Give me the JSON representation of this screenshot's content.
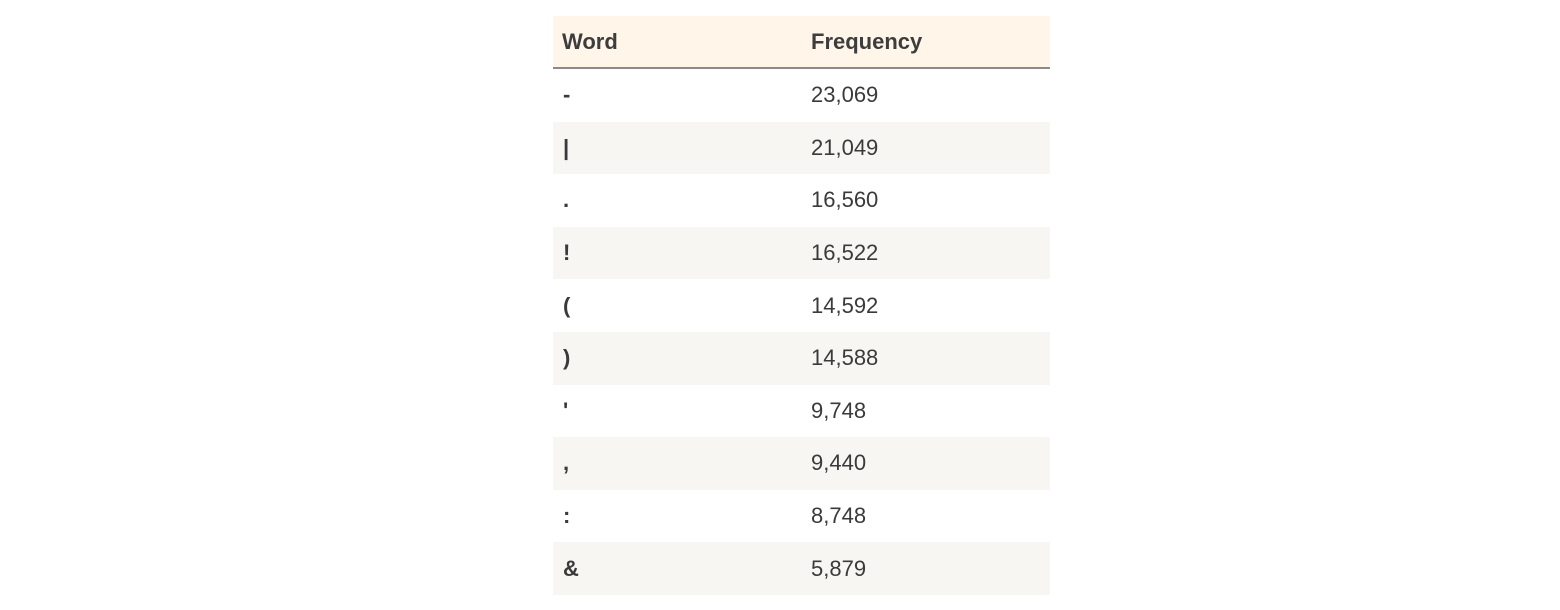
{
  "table": {
    "columns": [
      "Word",
      "Frequency"
    ],
    "rows": [
      {
        "word": "-",
        "frequency": "23,069"
      },
      {
        "word": "|",
        "frequency": "21,049"
      },
      {
        "word": ".",
        "frequency": "16,560"
      },
      {
        "word": "!",
        "frequency": "16,522"
      },
      {
        "word": "(",
        "frequency": "14,592"
      },
      {
        "word": ")",
        "frequency": "14,588"
      },
      {
        "word": "'",
        "frequency": "9,748"
      },
      {
        "word": ",",
        "frequency": "9,440"
      },
      {
        "word": ":",
        "frequency": "8,748"
      },
      {
        "word": "&",
        "frequency": "5,879"
      }
    ]
  },
  "colors": {
    "header_bg": "#fff6e9",
    "stripe_bg": "#f7f6f3",
    "text": "#3a3a3a",
    "header_rule": "#8a8a8a"
  }
}
